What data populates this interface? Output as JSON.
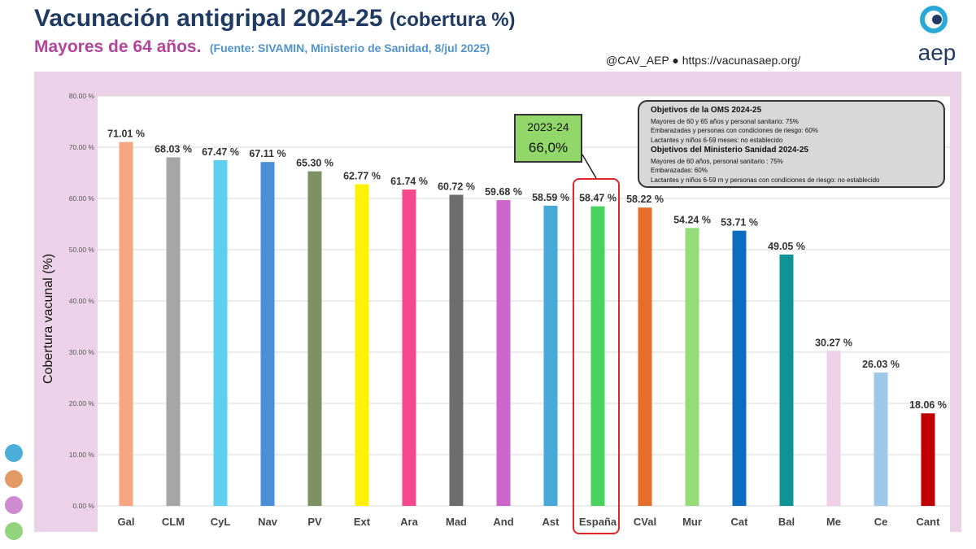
{
  "header": {
    "title": "Vacunación antigripal 2024-25",
    "title_suffix": "(cobertura %)",
    "subtitle": "Mayores de 64 años.",
    "source": "(Fuente: SIVAMIN, Ministerio de Sanidad, 8/jul 2025)",
    "handle": "@CAV_AEP ● https://vacunasaep.org/",
    "logo_text": "aep"
  },
  "annotation_2023": {
    "label": "2023-24",
    "value": "66,0%"
  },
  "objectives": {
    "oms_title": "Objetivos de la OMS 2024-25",
    "oms_lines": [
      "Mayores de 60 y 65 años y personal sanitario: 75%",
      "Embarazadas y personas con condiciones de riesgo: 60%",
      "Lactantes y niños 6-59 meses: no establecido"
    ],
    "ms_title": "Objetivos del Ministerio Sanidad 2024-25",
    "ms_lines": [
      "Mayores de 60 años, personal sanitario : 75%",
      "Embarazadas: 60%",
      "Lactantes y niños 6-59 m y personas con condiciones de riesgo: no establecido"
    ]
  },
  "chart_data": {
    "type": "bar",
    "title": "Vacunación antigripal 2024-25 (cobertura %)",
    "ylabel": "Cobertura vacunal (%)",
    "ylim": [
      0,
      80
    ],
    "yticks": [
      "0.00 %",
      "10.00 %",
      "20.00 %",
      "30.00 %",
      "40.00 %",
      "50.00 %",
      "60.00 %",
      "70.00 %",
      "80.00 %"
    ],
    "grid": true,
    "categories": [
      "Gal",
      "CLM",
      "CyL",
      "Nav",
      "PV",
      "Ext",
      "Ara",
      "Mad",
      "And",
      "Ast",
      "España",
      "CVal",
      "Mur",
      "Cat",
      "Bal",
      "Me",
      "Ce",
      "Cant"
    ],
    "values": [
      71.01,
      68.03,
      67.47,
      67.11,
      65.3,
      62.77,
      61.74,
      60.72,
      59.68,
      58.59,
      58.47,
      58.22,
      54.24,
      53.71,
      49.05,
      30.27,
      26.03,
      18.06
    ],
    "labels": [
      "71.01 %",
      "68.03 %",
      "67.47 %",
      "67.11 %",
      "65.30 %",
      "62.77 %",
      "61.74 %",
      "60.72 %",
      "59.68 %",
      "58.59 %",
      "58.47 %",
      "58.22 %",
      "54.24 %",
      "53.71 %",
      "49.05 %",
      "30.27 %",
      "26.03 %",
      "18.06 %"
    ],
    "colors": [
      "#f7a583",
      "#a6a6a6",
      "#5ecfef",
      "#4a90d9",
      "#7d9163",
      "#fff200",
      "#f4488c",
      "#6d6d6d",
      "#cc66cc",
      "#46a9d8",
      "#48d25e",
      "#e56e2b",
      "#94dc7a",
      "#0e6cc0",
      "#0f9496",
      "#efcfe9",
      "#9fc7e8",
      "#c00000"
    ]
  },
  "legend_dots": [
    "#4aaed8",
    "#e39a67",
    "#cf8bd0",
    "#94d47e"
  ]
}
